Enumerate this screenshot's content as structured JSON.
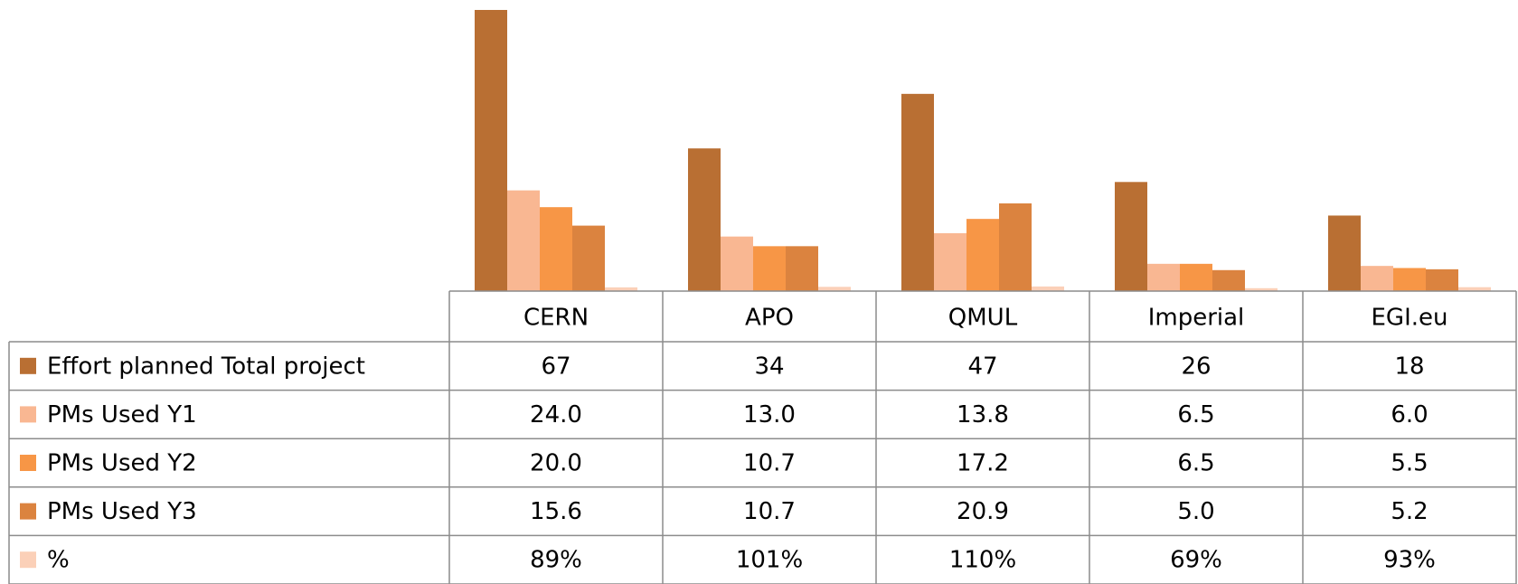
{
  "chart_data": {
    "type": "bar",
    "categories": [
      "CERN",
      "APO",
      "QMUL",
      "Imperial",
      "EGI.eu"
    ],
    "series": [
      {
        "name": "Effort  planned Total project",
        "color": "#b96f33",
        "values": [
          67,
          34,
          47,
          26,
          18
        ]
      },
      {
        "name": "PMs Used Y1",
        "color": "#f9b792",
        "values": [
          24.0,
          13.0,
          13.8,
          6.5,
          6.0
        ],
        "value_labels": [
          "24.0",
          "13.0",
          "13.8",
          "6.5",
          "6.0"
        ]
      },
      {
        "name": "PMs Used Y2",
        "color": "#f79646",
        "values": [
          20.0,
          10.7,
          17.2,
          6.5,
          5.5
        ],
        "value_labels": [
          "20.0",
          "10.7",
          "17.2",
          "6.5",
          "5.5"
        ]
      },
      {
        "name": "PMs Used Y3",
        "color": "#db833f",
        "values": [
          15.6,
          10.7,
          20.9,
          5.0,
          5.2
        ],
        "value_labels": [
          "15.6",
          "10.7",
          "20.9",
          "5.0",
          "5.2"
        ]
      },
      {
        "name": "%",
        "color": "#fbd0b8",
        "values": [
          0.89,
          1.01,
          1.1,
          0.69,
          0.93
        ],
        "value_labels": [
          "89%",
          "101%",
          "110%",
          "69%",
          "93%"
        ]
      }
    ]
  }
}
